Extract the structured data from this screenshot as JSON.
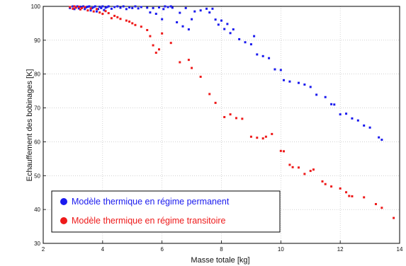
{
  "chart_data": {
    "type": "scatter",
    "xlabel": "Masse totale [kg]",
    "ylabel": "Echauffement des bobinages [K]",
    "xlim": [
      2,
      14
    ],
    "ylim": [
      30,
      100
    ],
    "xticks": [
      2,
      4,
      6,
      8,
      10,
      12,
      14
    ],
    "yticks": [
      30,
      40,
      50,
      60,
      70,
      80,
      90,
      100
    ],
    "grid": true,
    "legend_position": "bottom-left",
    "series": [
      {
        "name": "Modèle thermique en régime permanent",
        "color": "#1a1aee",
        "points": [
          [
            2.9,
            99.5
          ],
          [
            3.0,
            100
          ],
          [
            3.05,
            99.2
          ],
          [
            3.1,
            99.8
          ],
          [
            3.15,
            100
          ],
          [
            3.2,
            99.4
          ],
          [
            3.25,
            99.9
          ],
          [
            3.3,
            99.6
          ],
          [
            3.35,
            100
          ],
          [
            3.4,
            99.2
          ],
          [
            3.45,
            99.7
          ],
          [
            3.5,
            99.9
          ],
          [
            3.55,
            100
          ],
          [
            3.6,
            98.8
          ],
          [
            3.65,
            99.5
          ],
          [
            3.7,
            99.8
          ],
          [
            3.75,
            100
          ],
          [
            3.8,
            98.5
          ],
          [
            3.85,
            99.2
          ],
          [
            3.9,
            99.9
          ],
          [
            3.95,
            99.5
          ],
          [
            4.0,
            100
          ],
          [
            4.05,
            98.9
          ],
          [
            4.1,
            99.6
          ],
          [
            4.15,
            99.8
          ],
          [
            4.2,
            100
          ],
          [
            4.3,
            99.3
          ],
          [
            4.4,
            99.8
          ],
          [
            4.5,
            100
          ],
          [
            4.6,
            99.6
          ],
          [
            4.7,
            100
          ],
          [
            4.8,
            99.2
          ],
          [
            4.9,
            99.7
          ],
          [
            5.0,
            99.5
          ],
          [
            5.1,
            100
          ],
          [
            5.2,
            99.4
          ],
          [
            5.3,
            99.8
          ],
          [
            5.5,
            99.6
          ],
          [
            5.6,
            98.2
          ],
          [
            5.7,
            99.5
          ],
          [
            5.8,
            97.8
          ],
          [
            5.9,
            99.7
          ],
          [
            6.0,
            96.2
          ],
          [
            6.05,
            99.2
          ],
          [
            6.1,
            100
          ],
          [
            6.2,
            99.8
          ],
          [
            6.3,
            100
          ],
          [
            6.35,
            99.6
          ],
          [
            6.5,
            95.3
          ],
          [
            6.6,
            98.1
          ],
          [
            6.7,
            94.1
          ],
          [
            6.8,
            99.5
          ],
          [
            6.9,
            93.2
          ],
          [
            7.0,
            96.2
          ],
          [
            7.1,
            98.5
          ],
          [
            7.3,
            98.8
          ],
          [
            7.5,
            99.3
          ],
          [
            7.6,
            98.2
          ],
          [
            7.7,
            99.3
          ],
          [
            7.8,
            96.1
          ],
          [
            7.9,
            94.6
          ],
          [
            8.0,
            95.8
          ],
          [
            8.1,
            93.3
          ],
          [
            8.2,
            94.8
          ],
          [
            8.3,
            92.1
          ],
          [
            8.4,
            93.2
          ],
          [
            8.6,
            90.3
          ],
          [
            8.8,
            89.4
          ],
          [
            9.0,
            88.8
          ],
          [
            9.1,
            91.2
          ],
          [
            9.2,
            85.8
          ],
          [
            9.4,
            85.3
          ],
          [
            9.6,
            84.7
          ],
          [
            9.8,
            81.4
          ],
          [
            10.0,
            81.2
          ],
          [
            10.1,
            78.2
          ],
          [
            10.3,
            77.8
          ],
          [
            10.6,
            77.4
          ],
          [
            10.8,
            76.9
          ],
          [
            11.0,
            76.2
          ],
          [
            11.2,
            73.9
          ],
          [
            11.5,
            73.2
          ],
          [
            11.7,
            71.1
          ],
          [
            11.8,
            71.0
          ],
          [
            12.0,
            68.1
          ],
          [
            12.2,
            68.3
          ],
          [
            12.4,
            66.9
          ],
          [
            12.6,
            66.3
          ],
          [
            12.8,
            64.8
          ],
          [
            13.0,
            64.2
          ],
          [
            13.3,
            61.3
          ],
          [
            13.4,
            60.6
          ]
        ]
      },
      {
        "name": "Modèle thermique en régime transitoire",
        "color": "#ee1a1a",
        "points": [
          [
            2.9,
            99.8
          ],
          [
            3.0,
            99.3
          ],
          [
            3.05,
            100
          ],
          [
            3.1,
            99.6
          ],
          [
            3.2,
            99.9
          ],
          [
            3.25,
            99.1
          ],
          [
            3.3,
            99.5
          ],
          [
            3.4,
            99.8
          ],
          [
            3.5,
            98.8
          ],
          [
            3.6,
            99.4
          ],
          [
            3.7,
            98.5
          ],
          [
            3.8,
            99.2
          ],
          [
            3.9,
            98.2
          ],
          [
            4.0,
            97.8
          ],
          [
            4.1,
            98.6
          ],
          [
            4.2,
            98.0
          ],
          [
            4.3,
            96.5
          ],
          [
            4.4,
            97.2
          ],
          [
            4.5,
            96.8
          ],
          [
            4.6,
            96.3
          ],
          [
            4.8,
            95.8
          ],
          [
            4.9,
            95.5
          ],
          [
            5.0,
            95.0
          ],
          [
            5.1,
            94.5
          ],
          [
            5.3,
            94.0
          ],
          [
            5.5,
            93.0
          ],
          [
            5.6,
            91.2
          ],
          [
            5.7,
            88.5
          ],
          [
            5.8,
            86.3
          ],
          [
            5.9,
            87.3
          ],
          [
            6.0,
            92.0
          ],
          [
            6.3,
            89.2
          ],
          [
            6.6,
            83.5
          ],
          [
            6.9,
            84.2
          ],
          [
            7.0,
            81.8
          ],
          [
            7.3,
            79.2
          ],
          [
            7.6,
            74.1
          ],
          [
            7.8,
            71.5
          ],
          [
            8.1,
            67.3
          ],
          [
            8.3,
            68.1
          ],
          [
            8.5,
            67.0
          ],
          [
            8.7,
            66.8
          ],
          [
            9.0,
            61.5
          ],
          [
            9.2,
            61.2
          ],
          [
            9.4,
            61.0
          ],
          [
            9.5,
            61.5
          ],
          [
            9.7,
            62.3
          ],
          [
            10.0,
            57.3
          ],
          [
            10.1,
            57.2
          ],
          [
            10.3,
            53.2
          ],
          [
            10.4,
            52.5
          ],
          [
            10.6,
            52.4
          ],
          [
            10.8,
            50.5
          ],
          [
            11.0,
            51.4
          ],
          [
            11.1,
            51.8
          ],
          [
            11.4,
            48.3
          ],
          [
            11.5,
            47.5
          ],
          [
            11.7,
            46.8
          ],
          [
            12.0,
            46.2
          ],
          [
            12.2,
            45.1
          ],
          [
            12.3,
            44.0
          ],
          [
            12.4,
            43.9
          ],
          [
            12.8,
            43.6
          ],
          [
            13.2,
            41.6
          ],
          [
            13.4,
            40.5
          ],
          [
            13.8,
            37.5
          ]
        ]
      }
    ]
  }
}
